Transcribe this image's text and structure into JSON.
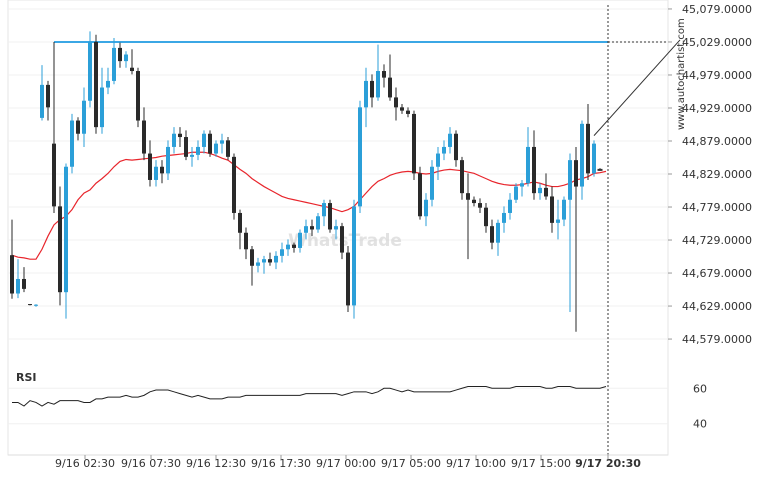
{
  "watermark": "WhatsTrade",
  "attribution": "www.autochartist.com",
  "rsi_label": "RSI",
  "chart_data": [
    {
      "type": "candlestick",
      "title": "",
      "x_tick_labels": [
        "9/16 02:30",
        "9/16 07:30",
        "9/16 12:30",
        "9/16 17:30",
        "9/17 00:00",
        "9/17 05:00",
        "9/17 10:00",
        "9/17 15:00",
        "9/17 20:30"
      ],
      "y_tick_labels": [
        "45,079.0000",
        "45,029.0000",
        "44,979.0000",
        "44,929.0000",
        "44,879.0000",
        "44,829.0000",
        "44,779.0000",
        "44,729.0000",
        "44,679.0000",
        "44,629.0000",
        "44,579.0000"
      ],
      "y_ticks": [
        45079,
        45029,
        44979,
        44929,
        44879,
        44829,
        44779,
        44729,
        44679,
        44629,
        44579
      ],
      "ylim": [
        44570,
        45085
      ],
      "resistance_level": 45029,
      "colors": {
        "up": "#2b9fd8",
        "down": "#2a2a2a",
        "moving_average": "#e8252c",
        "resistance": "#3ba7e5"
      },
      "candles": [
        {
          "o": 44706,
          "h": 44760,
          "l": 44640,
          "c": 44648
        },
        {
          "o": 44648,
          "h": 44700,
          "l": 44641,
          "c": 44670
        },
        {
          "o": 44670,
          "h": 44688,
          "l": 44650,
          "c": 44655
        },
        {
          "o": 44632,
          "h": 44632,
          "l": 44630,
          "c": 44631
        },
        {
          "o": 44630,
          "h": 44632,
          "l": 44628,
          "c": 44631
        },
        {
          "o": 44914,
          "h": 44994,
          "l": 44910,
          "c": 44964
        },
        {
          "o": 44964,
          "h": 44970,
          "l": 44910,
          "c": 44930
        },
        {
          "o": 44875,
          "h": 45029,
          "l": 44770,
          "c": 44780
        },
        {
          "o": 44780,
          "h": 44810,
          "l": 44630,
          "c": 44650
        },
        {
          "o": 44650,
          "h": 44845,
          "l": 44610,
          "c": 44840
        },
        {
          "o": 44840,
          "h": 44920,
          "l": 44830,
          "c": 44910
        },
        {
          "o": 44910,
          "h": 44915,
          "l": 44880,
          "c": 44890
        },
        {
          "o": 44890,
          "h": 44960,
          "l": 44870,
          "c": 44940
        },
        {
          "o": 44940,
          "h": 45045,
          "l": 44930,
          "c": 45029
        },
        {
          "o": 45029,
          "h": 45040,
          "l": 44890,
          "c": 44900
        },
        {
          "o": 44900,
          "h": 44990,
          "l": 44890,
          "c": 44960
        },
        {
          "o": 44960,
          "h": 44990,
          "l": 44950,
          "c": 44970
        },
        {
          "o": 44970,
          "h": 45035,
          "l": 44965,
          "c": 45020
        },
        {
          "o": 45020,
          "h": 45028,
          "l": 44990,
          "c": 45000
        },
        {
          "o": 45000,
          "h": 45015,
          "l": 44990,
          "c": 45010
        },
        {
          "o": 44990,
          "h": 45018,
          "l": 44980,
          "c": 44985
        },
        {
          "o": 44985,
          "h": 44990,
          "l": 44900,
          "c": 44910
        },
        {
          "o": 44910,
          "h": 44930,
          "l": 44850,
          "c": 44860
        },
        {
          "o": 44860,
          "h": 44880,
          "l": 44810,
          "c": 44820
        },
        {
          "o": 44820,
          "h": 44850,
          "l": 44810,
          "c": 44840
        },
        {
          "o": 44840,
          "h": 44850,
          "l": 44815,
          "c": 44830
        },
        {
          "o": 44830,
          "h": 44880,
          "l": 44820,
          "c": 44870
        },
        {
          "o": 44870,
          "h": 44900,
          "l": 44860,
          "c": 44890
        },
        {
          "o": 44890,
          "h": 44900,
          "l": 44870,
          "c": 44885
        },
        {
          "o": 44885,
          "h": 44895,
          "l": 44850,
          "c": 44855
        },
        {
          "o": 44855,
          "h": 44870,
          "l": 44840,
          "c": 44858
        },
        {
          "o": 44858,
          "h": 44880,
          "l": 44850,
          "c": 44870
        },
        {
          "o": 44870,
          "h": 44895,
          "l": 44860,
          "c": 44890
        },
        {
          "o": 44890,
          "h": 44895,
          "l": 44855,
          "c": 44860
        },
        {
          "o": 44860,
          "h": 44880,
          "l": 44855,
          "c": 44875
        },
        {
          "o": 44875,
          "h": 44890,
          "l": 44860,
          "c": 44880
        },
        {
          "o": 44880,
          "h": 44885,
          "l": 44850,
          "c": 44855
        },
        {
          "o": 44855,
          "h": 44860,
          "l": 44760,
          "c": 44770
        },
        {
          "o": 44770,
          "h": 44775,
          "l": 44715,
          "c": 44740
        },
        {
          "o": 44740,
          "h": 44748,
          "l": 44700,
          "c": 44715
        },
        {
          "o": 44715,
          "h": 44720,
          "l": 44660,
          "c": 44690
        },
        {
          "o": 44690,
          "h": 44702,
          "l": 44680,
          "c": 44695
        },
        {
          "o": 44695,
          "h": 44705,
          "l": 44678,
          "c": 44700
        },
        {
          "o": 44700,
          "h": 44710,
          "l": 44690,
          "c": 44695
        },
        {
          "o": 44695,
          "h": 44712,
          "l": 44685,
          "c": 44705
        },
        {
          "o": 44705,
          "h": 44725,
          "l": 44695,
          "c": 44715
        },
        {
          "o": 44715,
          "h": 44730,
          "l": 44705,
          "c": 44722
        },
        {
          "o": 44722,
          "h": 44725,
          "l": 44710,
          "c": 44717
        },
        {
          "o": 44717,
          "h": 44745,
          "l": 44710,
          "c": 44740
        },
        {
          "o": 44740,
          "h": 44760,
          "l": 44730,
          "c": 44750
        },
        {
          "o": 44750,
          "h": 44760,
          "l": 44735,
          "c": 44745
        },
        {
          "o": 44745,
          "h": 44770,
          "l": 44740,
          "c": 44765
        },
        {
          "o": 44765,
          "h": 44790,
          "l": 44750,
          "c": 44785
        },
        {
          "o": 44785,
          "h": 44790,
          "l": 44740,
          "c": 44745
        },
        {
          "o": 44745,
          "h": 44760,
          "l": 44730,
          "c": 44750
        },
        {
          "o": 44750,
          "h": 44755,
          "l": 44700,
          "c": 44710
        },
        {
          "o": 44710,
          "h": 44720,
          "l": 44620,
          "c": 44630
        },
        {
          "o": 44630,
          "h": 44790,
          "l": 44610,
          "c": 44780
        },
        {
          "o": 44780,
          "h": 44940,
          "l": 44770,
          "c": 44930
        },
        {
          "o": 44930,
          "h": 44990,
          "l": 44900,
          "c": 44970
        },
        {
          "o": 44970,
          "h": 44980,
          "l": 44930,
          "c": 44945
        },
        {
          "o": 44945,
          "h": 45025,
          "l": 44940,
          "c": 44985
        },
        {
          "o": 44985,
          "h": 44995,
          "l": 44960,
          "c": 44975
        },
        {
          "o": 44975,
          "h": 45010,
          "l": 44940,
          "c": 44945
        },
        {
          "o": 44945,
          "h": 44960,
          "l": 44910,
          "c": 44930
        },
        {
          "o": 44930,
          "h": 44935,
          "l": 44920,
          "c": 44925
        },
        {
          "o": 44925,
          "h": 44930,
          "l": 44915,
          "c": 44920
        },
        {
          "o": 44920,
          "h": 44925,
          "l": 44820,
          "c": 44830
        },
        {
          "o": 44830,
          "h": 44840,
          "l": 44760,
          "c": 44765
        },
        {
          "o": 44765,
          "h": 44800,
          "l": 44750,
          "c": 44790
        },
        {
          "o": 44790,
          "h": 44850,
          "l": 44780,
          "c": 44840
        },
        {
          "o": 44840,
          "h": 44870,
          "l": 44820,
          "c": 44860
        },
        {
          "o": 44860,
          "h": 44880,
          "l": 44850,
          "c": 44870
        },
        {
          "o": 44870,
          "h": 44900,
          "l": 44860,
          "c": 44890
        },
        {
          "o": 44890,
          "h": 44895,
          "l": 44840,
          "c": 44850
        },
        {
          "o": 44850,
          "h": 44855,
          "l": 44790,
          "c": 44800
        },
        {
          "o": 44800,
          "h": 44830,
          "l": 44700,
          "c": 44790
        },
        {
          "o": 44790,
          "h": 44795,
          "l": 44780,
          "c": 44785
        },
        {
          "o": 44785,
          "h": 44792,
          "l": 44770,
          "c": 44778
        },
        {
          "o": 44778,
          "h": 44785,
          "l": 44740,
          "c": 44750
        },
        {
          "o": 44750,
          "h": 44760,
          "l": 44715,
          "c": 44725
        },
        {
          "o": 44725,
          "h": 44760,
          "l": 44705,
          "c": 44755
        },
        {
          "o": 44755,
          "h": 44780,
          "l": 44740,
          "c": 44770
        },
        {
          "o": 44770,
          "h": 44800,
          "l": 44760,
          "c": 44790
        },
        {
          "o": 44790,
          "h": 44815,
          "l": 44785,
          "c": 44810
        },
        {
          "o": 44810,
          "h": 44820,
          "l": 44795,
          "c": 44815
        },
        {
          "o": 44815,
          "h": 44900,
          "l": 44810,
          "c": 44870
        },
        {
          "o": 44870,
          "h": 44895,
          "l": 44790,
          "c": 44800
        },
        {
          "o": 44800,
          "h": 44815,
          "l": 44790,
          "c": 44808
        },
        {
          "o": 44808,
          "h": 44830,
          "l": 44790,
          "c": 44795
        },
        {
          "o": 44795,
          "h": 44810,
          "l": 44740,
          "c": 44755
        },
        {
          "o": 44755,
          "h": 44790,
          "l": 44730,
          "c": 44760
        },
        {
          "o": 44760,
          "h": 44795,
          "l": 44750,
          "c": 44790
        },
        {
          "o": 44790,
          "h": 44860,
          "l": 44620,
          "c": 44850
        },
        {
          "o": 44850,
          "h": 44870,
          "l": 44590,
          "c": 44810
        },
        {
          "o": 44810,
          "h": 44910,
          "l": 44790,
          "c": 44905
        },
        {
          "o": 44905,
          "h": 44935,
          "l": 44820,
          "c": 44830
        },
        {
          "o": 44830,
          "h": 44880,
          "l": 44825,
          "c": 44875
        },
        {
          "o": 44836,
          "h": 44838,
          "l": 44834,
          "c": 44835
        }
      ],
      "moving_average": [
        44706,
        44703,
        44702,
        44700,
        44700,
        44715,
        44735,
        44752,
        44760,
        44765,
        44775,
        44790,
        44800,
        44805,
        44815,
        44822,
        44830,
        44840,
        44848,
        44851,
        44850,
        44851,
        44852,
        44853,
        44854,
        44856,
        44857,
        44858,
        44859,
        44860,
        44862,
        44862,
        44862,
        44860,
        44857,
        44853,
        44850,
        44843,
        44836,
        44830,
        44822,
        44816,
        44810,
        44805,
        44800,
        44795,
        44792,
        44790,
        44788,
        44786,
        44784,
        44782,
        44780,
        44778,
        44775,
        44772,
        44775,
        44780,
        44790,
        44800,
        44810,
        44818,
        44822,
        44827,
        44830,
        44832,
        44833,
        44832,
        44830,
        44829,
        44830,
        44833,
        44835,
        44836,
        44835,
        44834,
        44832,
        44830,
        44826,
        44822,
        44818,
        44815,
        44813,
        44812,
        44812,
        44813,
        44815,
        44817,
        44815,
        44812,
        44810,
        44810,
        44812,
        44815,
        44820,
        44822,
        44825,
        44830,
        44831,
        44833
      ],
      "rsi": {
        "name": "RSI",
        "y_tick_labels": [
          "60",
          "40"
        ],
        "y_ticks": [
          60,
          40
        ],
        "ylim": [
          28,
          72
        ],
        "values": [
          52,
          52,
          50,
          53,
          52,
          50,
          52,
          51,
          53,
          53,
          53,
          53,
          52,
          52,
          54,
          54,
          55,
          55,
          55,
          56,
          55,
          55,
          56,
          58,
          59,
          59,
          59,
          58,
          57,
          56,
          55,
          56,
          55,
          54,
          54,
          54,
          55,
          55,
          55,
          56,
          56,
          56,
          56,
          56,
          56,
          56,
          56,
          56,
          56,
          57,
          57,
          57,
          57,
          57,
          57,
          56,
          57,
          58,
          58,
          58,
          57,
          58,
          60,
          60,
          59,
          58,
          59,
          58,
          58,
          58,
          58,
          58,
          58,
          58,
          59,
          60,
          61,
          61,
          61,
          61,
          60,
          60,
          60,
          60,
          61,
          61,
          61,
          61,
          61,
          60,
          60,
          61,
          61,
          61,
          60,
          60,
          60,
          60,
          60,
          61
        ]
      }
    }
  ]
}
